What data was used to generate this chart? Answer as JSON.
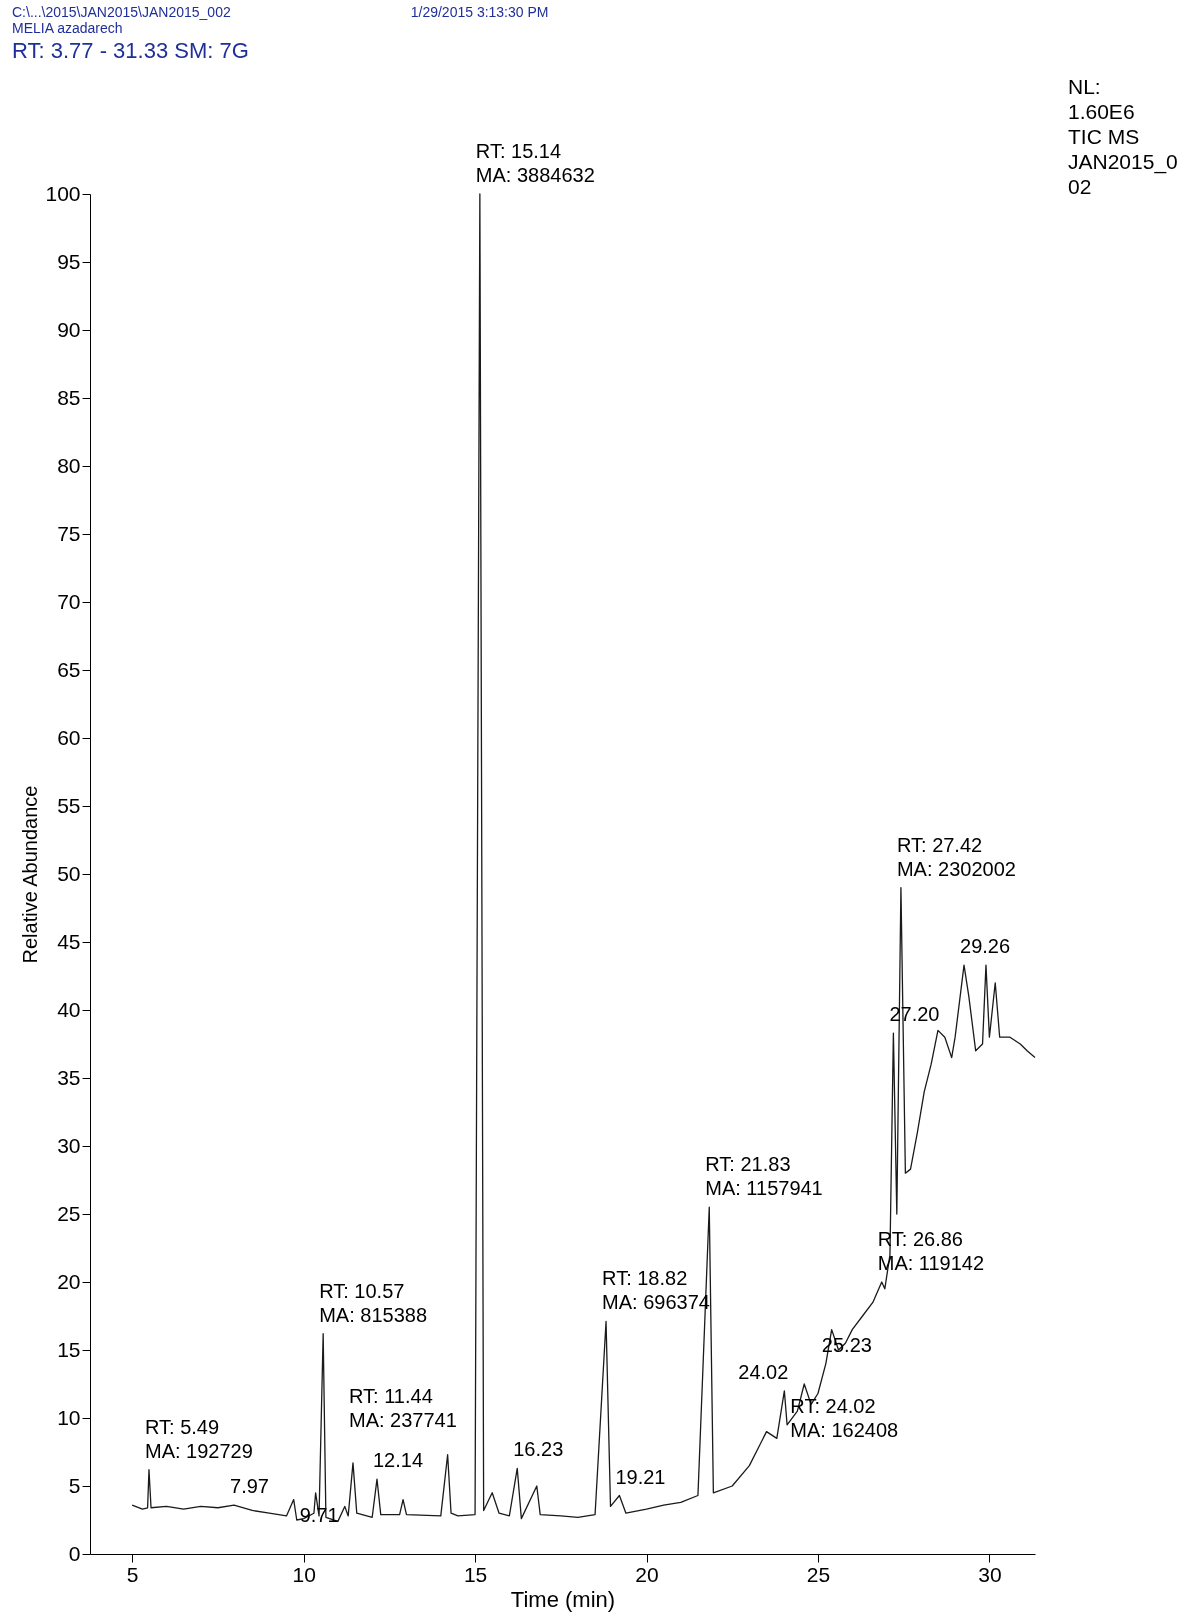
{
  "chart_data": {
    "type": "line",
    "title": "MELIA azadarech",
    "subtitle": "RT: 3.77 - 31.33   SM: 7G",
    "xlabel": "Time (min)",
    "ylabel": "Relative Abundance",
    "color": "#1a1a1a",
    "grid": false,
    "xlim": [
      3.77,
      31.33
    ],
    "xticks": [
      5,
      10,
      15,
      20,
      25,
      30
    ],
    "ylim": [
      0,
      100
    ],
    "yticks": [
      0,
      5,
      10,
      15,
      20,
      25,
      30,
      35,
      40,
      45,
      50,
      55,
      60,
      65,
      70,
      75,
      80,
      85,
      90,
      95,
      100
    ],
    "x": [
      5.0,
      5.3,
      5.45,
      5.49,
      5.55,
      6.0,
      6.5,
      7.0,
      7.5,
      7.97,
      8.5,
      9.0,
      9.5,
      9.71,
      9.8,
      10.0,
      10.3,
      10.35,
      10.45,
      10.57,
      10.65,
      11.0,
      11.2,
      11.3,
      11.44,
      11.55,
      12.0,
      12.14,
      12.25,
      12.8,
      12.9,
      13.0,
      14.0,
      14.2,
      14.3,
      14.5,
      15.0,
      15.14,
      15.25,
      15.5,
      15.7,
      16.0,
      16.23,
      16.35,
      16.8,
      16.9,
      17.5,
      18.0,
      18.5,
      18.82,
      18.95,
      19.21,
      19.4,
      20.0,
      20.5,
      21.0,
      21.5,
      21.83,
      21.95,
      22.5,
      23.0,
      23.3,
      23.5,
      23.8,
      24.02,
      24.1,
      24.4,
      24.6,
      24.8,
      25.0,
      25.23,
      25.4,
      25.6,
      25.8,
      26.0,
      26.3,
      26.6,
      26.86,
      26.95,
      27.1,
      27.2,
      27.3,
      27.42,
      27.55,
      27.7,
      27.9,
      28.1,
      28.3,
      28.5,
      28.7,
      28.9,
      29.0,
      29.26,
      29.4,
      29.6,
      29.8,
      29.9,
      30.0,
      30.17,
      30.3,
      30.6,
      30.9,
      31.1,
      31.33
    ],
    "values": [
      3.6,
      3.3,
      3.4,
      6.2,
      3.4,
      3.5,
      3.3,
      3.5,
      3.4,
      3.6,
      3.2,
      3.0,
      2.8,
      4.0,
      2.5,
      2.6,
      3.0,
      4.5,
      2.8,
      16.2,
      2.7,
      2.4,
      3.5,
      2.8,
      6.7,
      3.0,
      2.7,
      5.5,
      2.9,
      2.9,
      4.0,
      2.9,
      2.8,
      7.3,
      3.0,
      2.8,
      2.9,
      100,
      3.2,
      4.5,
      3.0,
      2.8,
      6.3,
      2.6,
      5.0,
      2.9,
      2.8,
      2.7,
      2.9,
      17.1,
      3.5,
      4.3,
      3.0,
      3.3,
      3.6,
      3.8,
      4.3,
      25.5,
      4.5,
      5.0,
      6.5,
      8.0,
      9.0,
      8.5,
      12.0,
      9.5,
      10.5,
      12.5,
      11.0,
      11.8,
      14.0,
      16.5,
      15.0,
      15.5,
      16.5,
      17.5,
      18.5,
      20.0,
      19.5,
      22.0,
      38.3,
      25.0,
      49.0,
      28.0,
      28.3,
      31.0,
      34.0,
      36.0,
      38.5,
      38.0,
      36.5,
      38.0,
      43.3,
      41.0,
      37.0,
      37.5,
      43.3,
      38.0,
      42.0,
      38.0,
      38.0,
      37.5,
      37.0,
      36.5
    ],
    "annotations": [
      "C:\\...\\2015\\JAN2015\\JAN2015_002",
      "1/29/2015 3:13:30 PM",
      "NL:\n1.60E6",
      "TIC  MS",
      "JAN2015_0\n02",
      {
        "text": "RT: 5.49\nMA: 192729",
        "x": 5.49,
        "y": 6.2
      },
      {
        "text": "7.97",
        "x": 7.97,
        "y": 3.6
      },
      {
        "text": "9.71",
        "x": 9.71,
        "y": 4.0
      },
      {
        "text": "RT: 10.57\nMA: 815388",
        "x": 10.57,
        "y": 16.2
      },
      {
        "text": "RT: 11.44\nMA: 237741",
        "x": 11.44,
        "y": 6.7
      },
      {
        "text": "12.14",
        "x": 12.14,
        "y": 5.5
      },
      {
        "text": "RT: 15.14\nMA: 3884632",
        "x": 15.14,
        "y": 100
      },
      {
        "text": "16.23",
        "x": 16.23,
        "y": 6.3
      },
      {
        "text": "RT: 18.82\nMA: 696374",
        "x": 18.82,
        "y": 17.1
      },
      {
        "text": "19.21",
        "x": 19.21,
        "y": 4.3
      },
      {
        "text": "RT: 21.83\nMA: 1157941",
        "x": 21.83,
        "y": 25.5
      },
      {
        "text": "24.02",
        "x": 24.02,
        "y": 12.0
      },
      {
        "text": "RT: 24.02\nMA: 162408",
        "x": 24.02,
        "y": 12.0
      },
      {
        "text": "25.23",
        "x": 25.23,
        "y": 14.0
      },
      {
        "text": "RT: 26.86\nMA: 119142",
        "x": 26.86,
        "y": 20.0
      },
      {
        "text": "27.20",
        "x": 27.2,
        "y": 38.3
      },
      {
        "text": "RT: 27.42\nMA: 2302002",
        "x": 27.42,
        "y": 49.0
      },
      {
        "text": "29.26",
        "x": 29.26,
        "y": 43.3
      }
    ]
  }
}
